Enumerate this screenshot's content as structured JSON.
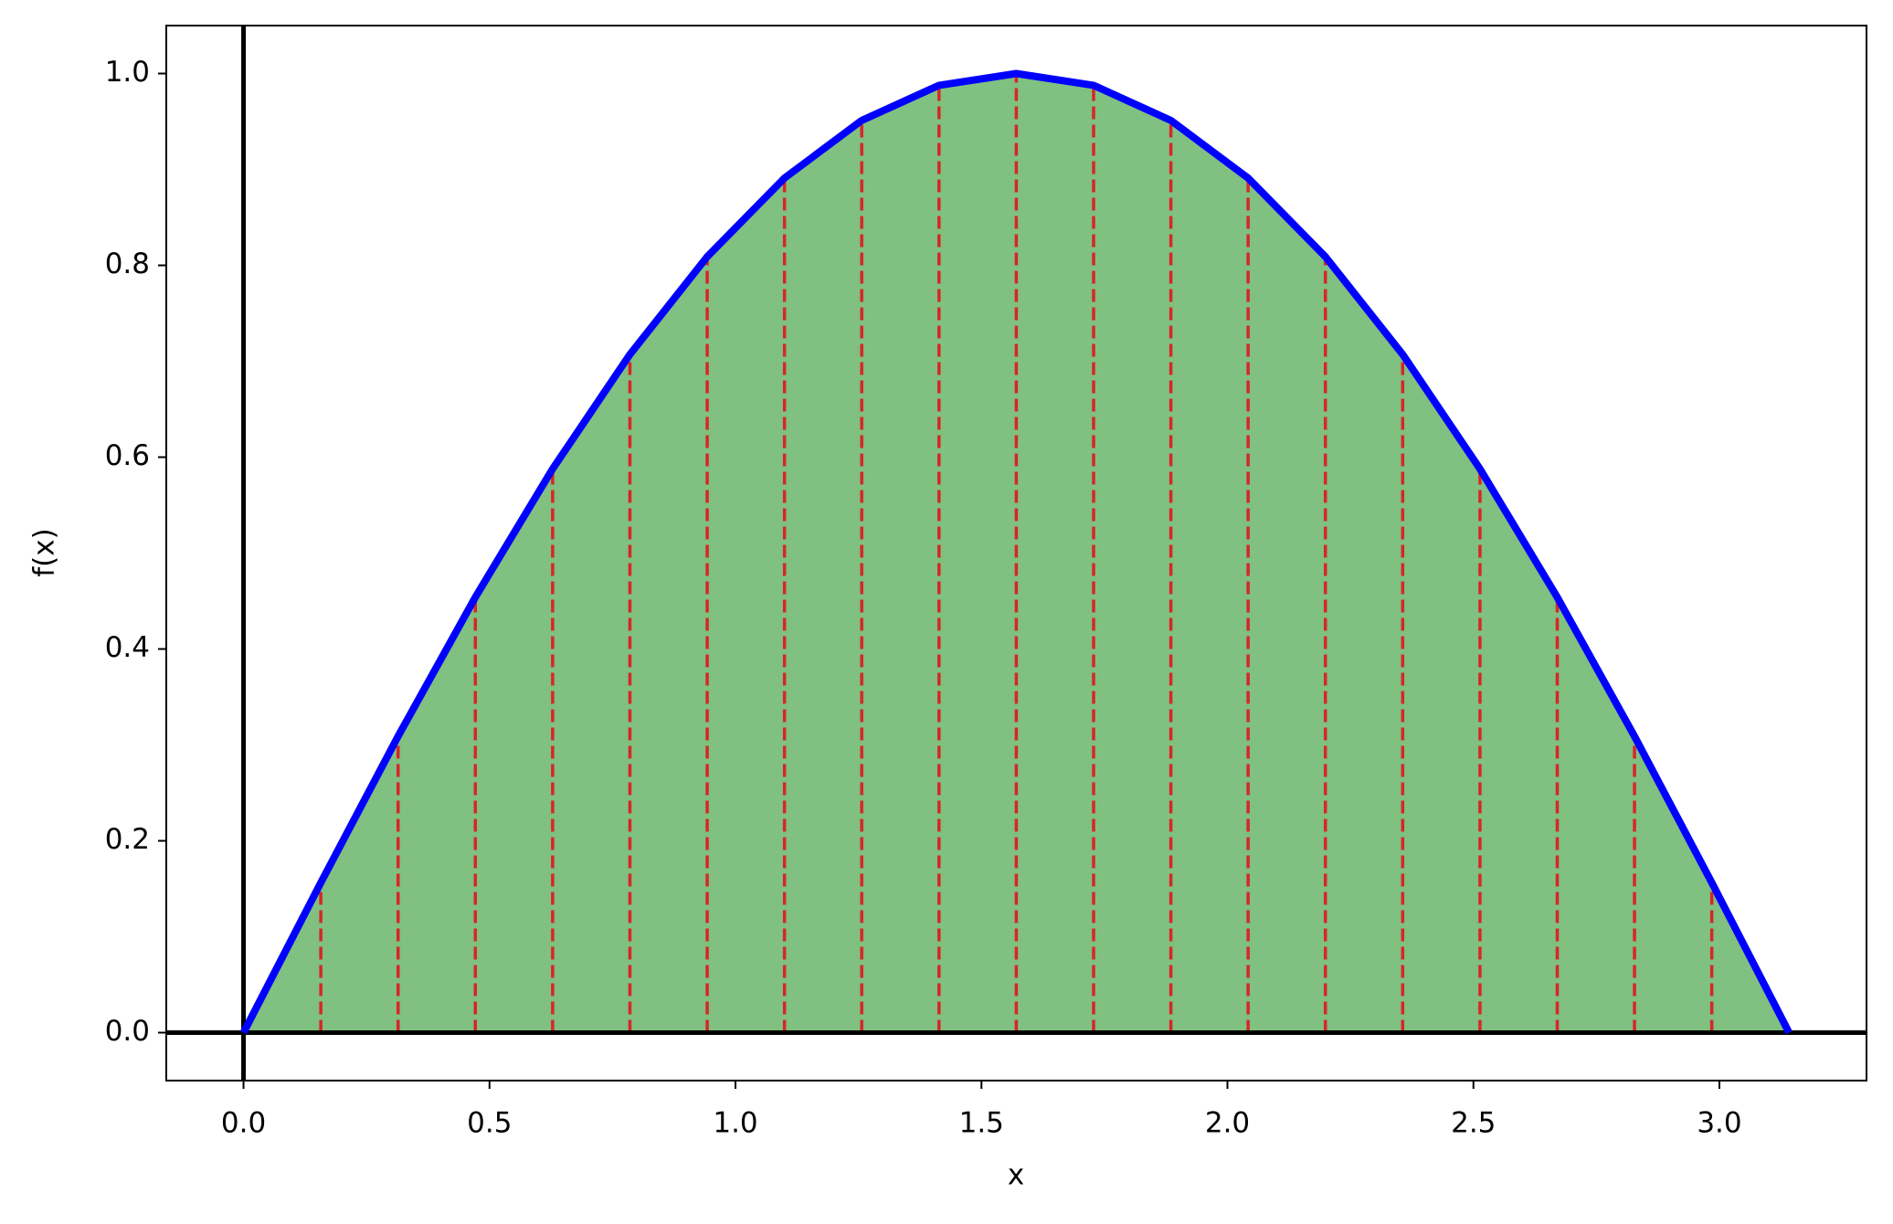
{
  "chart_data": {
    "type": "line",
    "x_label": "x",
    "y_label": "f(x)",
    "x": [
      0,
      0.1571,
      0.3142,
      0.4712,
      0.6283,
      0.7854,
      0.9425,
      1.0996,
      1.2566,
      1.4137,
      1.5708,
      1.7279,
      1.885,
      2.042,
      2.1991,
      2.3562,
      2.5133,
      2.6704,
      2.8274,
      2.9845,
      3.1416
    ],
    "series": [
      {
        "color": "#0000ff",
        "fill_color": "#80c080",
        "partition_color": "#d62728",
        "values": [
          0,
          0.1564,
          0.309,
          0.454,
          0.5878,
          0.7071,
          0.809,
          0.891,
          0.9511,
          0.9877,
          1,
          0.9877,
          0.9511,
          0.891,
          0.809,
          0.7071,
          0.5878,
          0.454,
          0.309,
          0.1564,
          0
        ]
      }
    ],
    "xlim": [
      -0.157,
      3.299
    ],
    "ylim": [
      -0.05,
      1.05
    ],
    "xticks": [
      {
        "value": 0,
        "label": "0.0"
      },
      {
        "value": 0.5,
        "label": "0.5"
      },
      {
        "value": 1,
        "label": "1.0"
      },
      {
        "value": 1.5,
        "label": "1.5"
      },
      {
        "value": 2,
        "label": "2.0"
      },
      {
        "value": 2.5,
        "label": "2.5"
      },
      {
        "value": 3,
        "label": "3.0"
      }
    ],
    "yticks": [
      {
        "value": 0,
        "label": "0.0"
      },
      {
        "value": 0.2,
        "label": "0.2"
      },
      {
        "value": 0.4,
        "label": "0.4"
      },
      {
        "value": 0.6,
        "label": "0.6"
      },
      {
        "value": 0.8,
        "label": "0.8"
      },
      {
        "value": 1,
        "label": "1.0"
      }
    ],
    "axhline": 0,
    "axvline": 0,
    "grid": false
  }
}
